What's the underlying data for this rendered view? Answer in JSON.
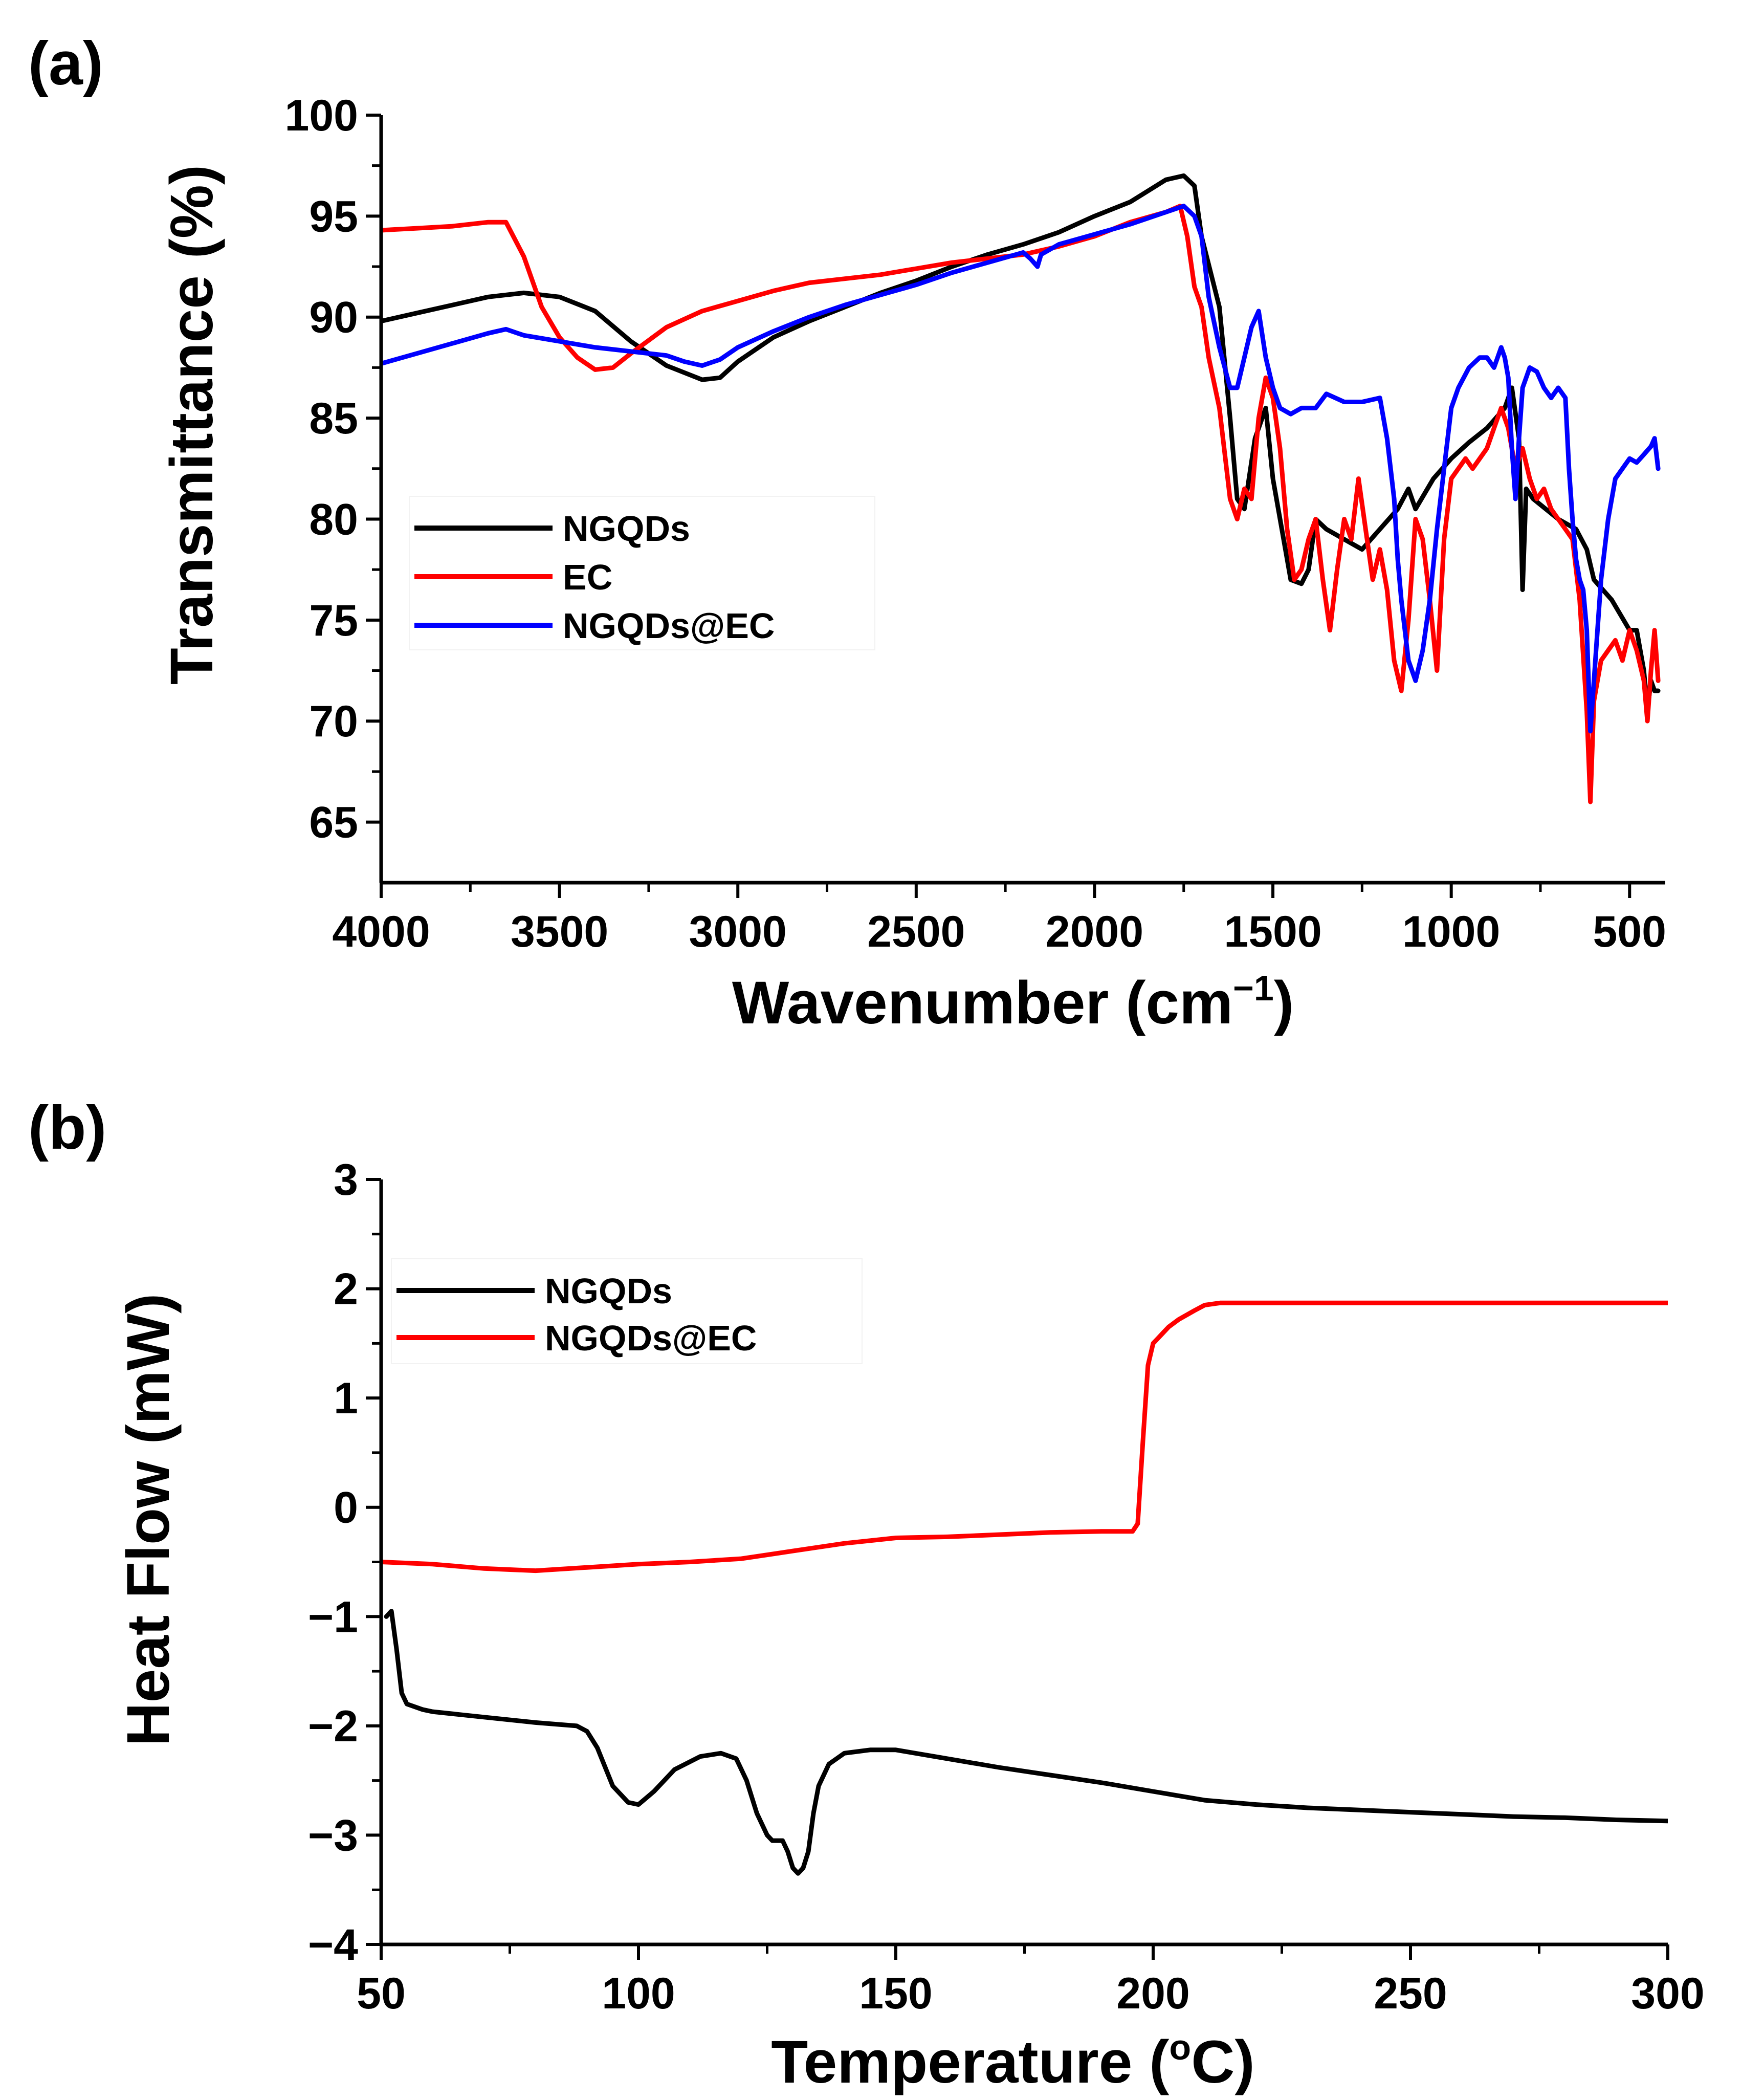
{
  "chart_data": [
    {
      "panel": "(a)",
      "type": "line",
      "xlabel": "Wavenumber (cm",
      "xlabel_sup": "−1",
      "xlabel_end": ")",
      "ylabel": "Transmittance (%)",
      "xlim": [
        4000,
        400
      ],
      "ylim": [
        62,
        100
      ],
      "xticks": [
        4000,
        3500,
        3000,
        2500,
        2000,
        1500,
        1000,
        500
      ],
      "yticks": [
        65,
        70,
        75,
        80,
        85,
        90,
        95,
        100
      ],
      "legend_position": "center-left",
      "series": [
        {
          "name": "NGQDs",
          "color": "#000000",
          "x": [
            4000,
            3900,
            3800,
            3700,
            3600,
            3500,
            3400,
            3300,
            3200,
            3100,
            3050,
            3000,
            2900,
            2800,
            2700,
            2600,
            2500,
            2400,
            2300,
            2200,
            2100,
            2000,
            1900,
            1800,
            1750,
            1720,
            1700,
            1650,
            1620,
            1600,
            1580,
            1550,
            1520,
            1500,
            1470,
            1450,
            1420,
            1400,
            1380,
            1350,
            1300,
            1250,
            1200,
            1150,
            1120,
            1100,
            1050,
            1000,
            950,
            900,
            850,
            830,
            810,
            800,
            790,
            770,
            700,
            650,
            620,
            600,
            550,
            500,
            480,
            460,
            450,
            440,
            430,
            420
          ],
          "values": [
            89.8,
            90.2,
            90.6,
            91.0,
            91.2,
            91.0,
            90.3,
            88.8,
            87.6,
            86.9,
            87.0,
            87.8,
            89.0,
            89.8,
            90.5,
            91.2,
            91.8,
            92.5,
            93.1,
            93.6,
            94.2,
            95.0,
            95.7,
            96.8,
            97.0,
            96.5,
            94.0,
            90.5,
            85.0,
            81.0,
            80.5,
            84.0,
            85.5,
            82.0,
            79.0,
            77.0,
            76.8,
            77.5,
            80.0,
            79.5,
            79.0,
            78.5,
            79.5,
            80.5,
            81.5,
            80.5,
            82.0,
            83.0,
            83.8,
            84.5,
            85.5,
            86.5,
            84.0,
            76.5,
            81.5,
            81.0,
            80.0,
            79.5,
            78.5,
            77.0,
            76.0,
            74.5,
            74.5,
            72.5,
            70.5,
            72.0,
            71.5,
            71.5
          ]
        },
        {
          "name": "EC",
          "color": "#ff0000",
          "x": [
            4000,
            3900,
            3800,
            3700,
            3650,
            3600,
            3550,
            3500,
            3450,
            3400,
            3350,
            3300,
            3200,
            3100,
            3000,
            2900,
            2800,
            2700,
            2600,
            2500,
            2400,
            2300,
            2200,
            2100,
            2000,
            1900,
            1800,
            1760,
            1740,
            1720,
            1700,
            1680,
            1650,
            1620,
            1600,
            1580,
            1560,
            1540,
            1520,
            1500,
            1480,
            1460,
            1440,
            1420,
            1400,
            1380,
            1360,
            1340,
            1320,
            1300,
            1280,
            1260,
            1240,
            1220,
            1200,
            1180,
            1160,
            1140,
            1120,
            1100,
            1080,
            1060,
            1040,
            1020,
            1000,
            980,
            960,
            940,
            920,
            900,
            880,
            860,
            840,
            820,
            800,
            780,
            760,
            740,
            720,
            700,
            680,
            660,
            640,
            620,
            610,
            600,
            590,
            580,
            560,
            540,
            520,
            500,
            480,
            460,
            450,
            440,
            430,
            420
          ],
          "values": [
            94.3,
            94.4,
            94.5,
            94.7,
            94.7,
            93.0,
            90.5,
            89.0,
            88.0,
            87.4,
            87.5,
            88.2,
            89.5,
            90.3,
            90.8,
            91.3,
            91.7,
            91.9,
            92.1,
            92.4,
            92.7,
            92.9,
            93.1,
            93.5,
            94.0,
            94.7,
            95.2,
            95.5,
            94.0,
            91.5,
            90.5,
            88.0,
            85.5,
            81.0,
            80.0,
            81.5,
            81.0,
            85.0,
            87.0,
            86.0,
            83.5,
            79.5,
            77.0,
            77.5,
            79.0,
            80.0,
            77.0,
            74.5,
            77.5,
            80.0,
            79.0,
            82.0,
            79.5,
            77.0,
            78.5,
            76.5,
            73.0,
            71.5,
            75.0,
            80.0,
            79.0,
            76.0,
            72.5,
            79.0,
            82.0,
            82.5,
            83.0,
            82.5,
            83.0,
            83.5,
            84.5,
            85.5,
            84.5,
            82.5,
            83.5,
            82.0,
            81.0,
            81.5,
            80.5,
            80.0,
            79.5,
            79.0,
            76.0,
            70.5,
            66.0,
            71.0,
            72.0,
            73.0,
            73.5,
            74.0,
            73.0,
            74.5,
            73.5,
            72.0,
            70.0,
            72.5,
            74.5,
            72.0
          ]
        },
        {
          "name": "NGQDs@EC",
          "color": "#0000ff",
          "x": [
            4000,
            3900,
            3800,
            3700,
            3650,
            3600,
            3500,
            3400,
            3300,
            3200,
            3150,
            3100,
            3050,
            3000,
            2900,
            2800,
            2700,
            2600,
            2500,
            2400,
            2300,
            2200,
            2180,
            2160,
            2150,
            2100,
            2000,
            1900,
            1800,
            1750,
            1720,
            1700,
            1680,
            1650,
            1620,
            1600,
            1580,
            1560,
            1540,
            1520,
            1500,
            1480,
            1450,
            1420,
            1400,
            1380,
            1350,
            1300,
            1250,
            1200,
            1180,
            1160,
            1150,
            1140,
            1120,
            1100,
            1080,
            1060,
            1040,
            1020,
            1000,
            980,
            950,
            920,
            900,
            880,
            860,
            850,
            840,
            830,
            820,
            810,
            800,
            790,
            780,
            760,
            740,
            720,
            700,
            680,
            670,
            660,
            650,
            640,
            630,
            620,
            610,
            600,
            590,
            580,
            560,
            540,
            520,
            500,
            480,
            460,
            440,
            430,
            420
          ],
          "values": [
            87.7,
            88.2,
            88.7,
            89.2,
            89.4,
            89.1,
            88.8,
            88.5,
            88.3,
            88.1,
            87.8,
            87.6,
            87.9,
            88.5,
            89.3,
            90.0,
            90.6,
            91.1,
            91.6,
            92.2,
            92.7,
            93.2,
            92.9,
            92.5,
            93.1,
            93.6,
            94.1,
            94.6,
            95.2,
            95.5,
            95.0,
            94.0,
            91.0,
            88.5,
            86.5,
            86.5,
            88.0,
            89.5,
            90.3,
            88.0,
            86.5,
            85.5,
            85.2,
            85.5,
            85.5,
            85.5,
            86.2,
            85.8,
            85.8,
            86.0,
            84.0,
            81.0,
            78.0,
            76.0,
            73.0,
            72.0,
            73.5,
            76.0,
            79.5,
            82.5,
            85.5,
            86.5,
            87.5,
            88.0,
            88.0,
            87.5,
            88.5,
            88.0,
            87.0,
            83.5,
            81.0,
            84.0,
            86.5,
            87.0,
            87.5,
            87.3,
            86.5,
            86.0,
            86.5,
            86.0,
            82.5,
            80.0,
            78.0,
            77.0,
            76.5,
            74.5,
            69.5,
            72.0,
            74.5,
            77.0,
            80.0,
            82.0,
            82.5,
            83.0,
            82.8,
            83.2,
            83.6,
            84.0,
            82.5
          ]
        }
      ]
    },
    {
      "panel": "(b)",
      "type": "line",
      "xlabel": "Temperature (",
      "xlabel_sup": "o",
      "xlabel_end": "C)",
      "ylabel": "Heat Flow (mW)",
      "xlim": [
        50,
        300
      ],
      "ylim": [
        -4,
        3
      ],
      "xticks": [
        50,
        100,
        150,
        200,
        250,
        300
      ],
      "yticks": [
        -4,
        -3,
        -2,
        -1,
        0,
        1,
        2,
        3
      ],
      "ytick_labels": [
        "−4",
        "−3",
        "−2",
        "−1",
        "0",
        "1",
        "2",
        "3"
      ],
      "legend_position": "top-left",
      "series": [
        {
          "name": "NGQDs",
          "color": "#000000",
          "x": [
            51,
            52,
            53,
            54,
            55,
            58,
            60,
            70,
            80,
            88,
            90,
            92,
            95,
            98,
            100,
            103,
            107,
            112,
            116,
            119,
            121,
            123,
            125,
            126,
            128,
            129,
            130,
            131,
            132,
            133,
            134,
            135,
            137,
            140,
            145,
            150,
            160,
            170,
            180,
            190,
            200,
            210,
            220,
            230,
            240,
            250,
            260,
            270,
            280,
            290,
            300
          ],
          "values": [
            -1.0,
            -0.95,
            -1.3,
            -1.7,
            -1.8,
            -1.85,
            -1.87,
            -1.92,
            -1.97,
            -2.0,
            -2.05,
            -2.2,
            -2.55,
            -2.7,
            -2.72,
            -2.6,
            -2.4,
            -2.28,
            -2.25,
            -2.3,
            -2.5,
            -2.8,
            -3.0,
            -3.05,
            -3.05,
            -3.15,
            -3.3,
            -3.35,
            -3.3,
            -3.15,
            -2.8,
            -2.55,
            -2.35,
            -2.25,
            -2.22,
            -2.22,
            -2.3,
            -2.38,
            -2.45,
            -2.52,
            -2.6,
            -2.68,
            -2.72,
            -2.75,
            -2.77,
            -2.79,
            -2.81,
            -2.83,
            -2.84,
            -2.86,
            -2.87
          ]
        },
        {
          "name": "NGQDs@EC",
          "color": "#ff0000",
          "x": [
            50,
            60,
            70,
            80,
            90,
            100,
            110,
            120,
            130,
            140,
            150,
            160,
            170,
            180,
            190,
            196,
            197,
            198,
            199,
            200,
            201,
            202,
            203,
            205,
            208,
            210,
            213,
            220,
            240,
            260,
            280,
            300
          ],
          "values": [
            -0.5,
            -0.52,
            -0.56,
            -0.58,
            -0.55,
            -0.52,
            -0.5,
            -0.47,
            -0.4,
            -0.33,
            -0.28,
            -0.27,
            -0.25,
            -0.23,
            -0.22,
            -0.22,
            -0.15,
            0.6,
            1.3,
            1.5,
            1.55,
            1.6,
            1.65,
            1.72,
            1.8,
            1.85,
            1.87,
            1.87,
            1.87,
            1.87,
            1.87,
            1.87
          ]
        }
      ]
    }
  ]
}
